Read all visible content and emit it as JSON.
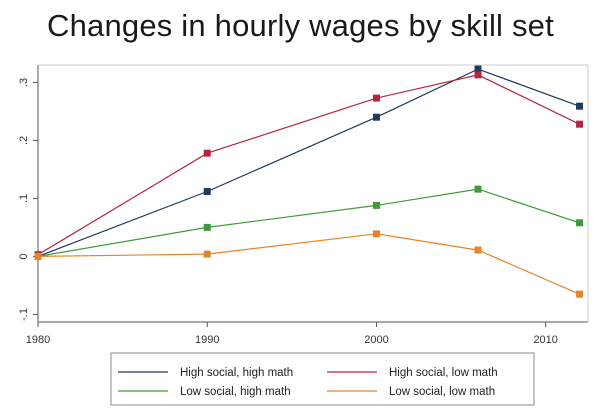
{
  "chart_data": {
    "type": "line",
    "title": "Changes in hourly wages by skill set",
    "xlabel": "",
    "ylabel": "",
    "xlim": [
      1980,
      2012.5
    ],
    "ylim": [
      -0.113,
      0.33
    ],
    "x_ticks": [
      1980,
      1990,
      2000,
      2010
    ],
    "y_ticks": [
      -0.1,
      0,
      0.1,
      0.2,
      0.3
    ],
    "y_tick_labels": [
      "-.1",
      "0",
      ".1",
      ".2",
      ".3"
    ],
    "grid": false,
    "legend_position": "bottom",
    "x": [
      1980,
      1990,
      2000,
      2006,
      2012
    ],
    "series": [
      {
        "name": "High social, high math",
        "color": "#1f3a5f",
        "values": [
          0.0,
          0.112,
          0.24,
          0.323,
          0.259
        ]
      },
      {
        "name": "High social, low math",
        "color": "#b3263f",
        "values": [
          0.003,
          0.178,
          0.273,
          0.313,
          0.228
        ]
      },
      {
        "name": "Low social, high math",
        "color": "#3f9a3a",
        "values": [
          0.0,
          0.05,
          0.088,
          0.116,
          0.058
        ]
      },
      {
        "name": "Low social, low math",
        "color": "#e8842a",
        "values": [
          0.0,
          0.004,
          0.039,
          0.011,
          -0.065
        ]
      }
    ]
  }
}
